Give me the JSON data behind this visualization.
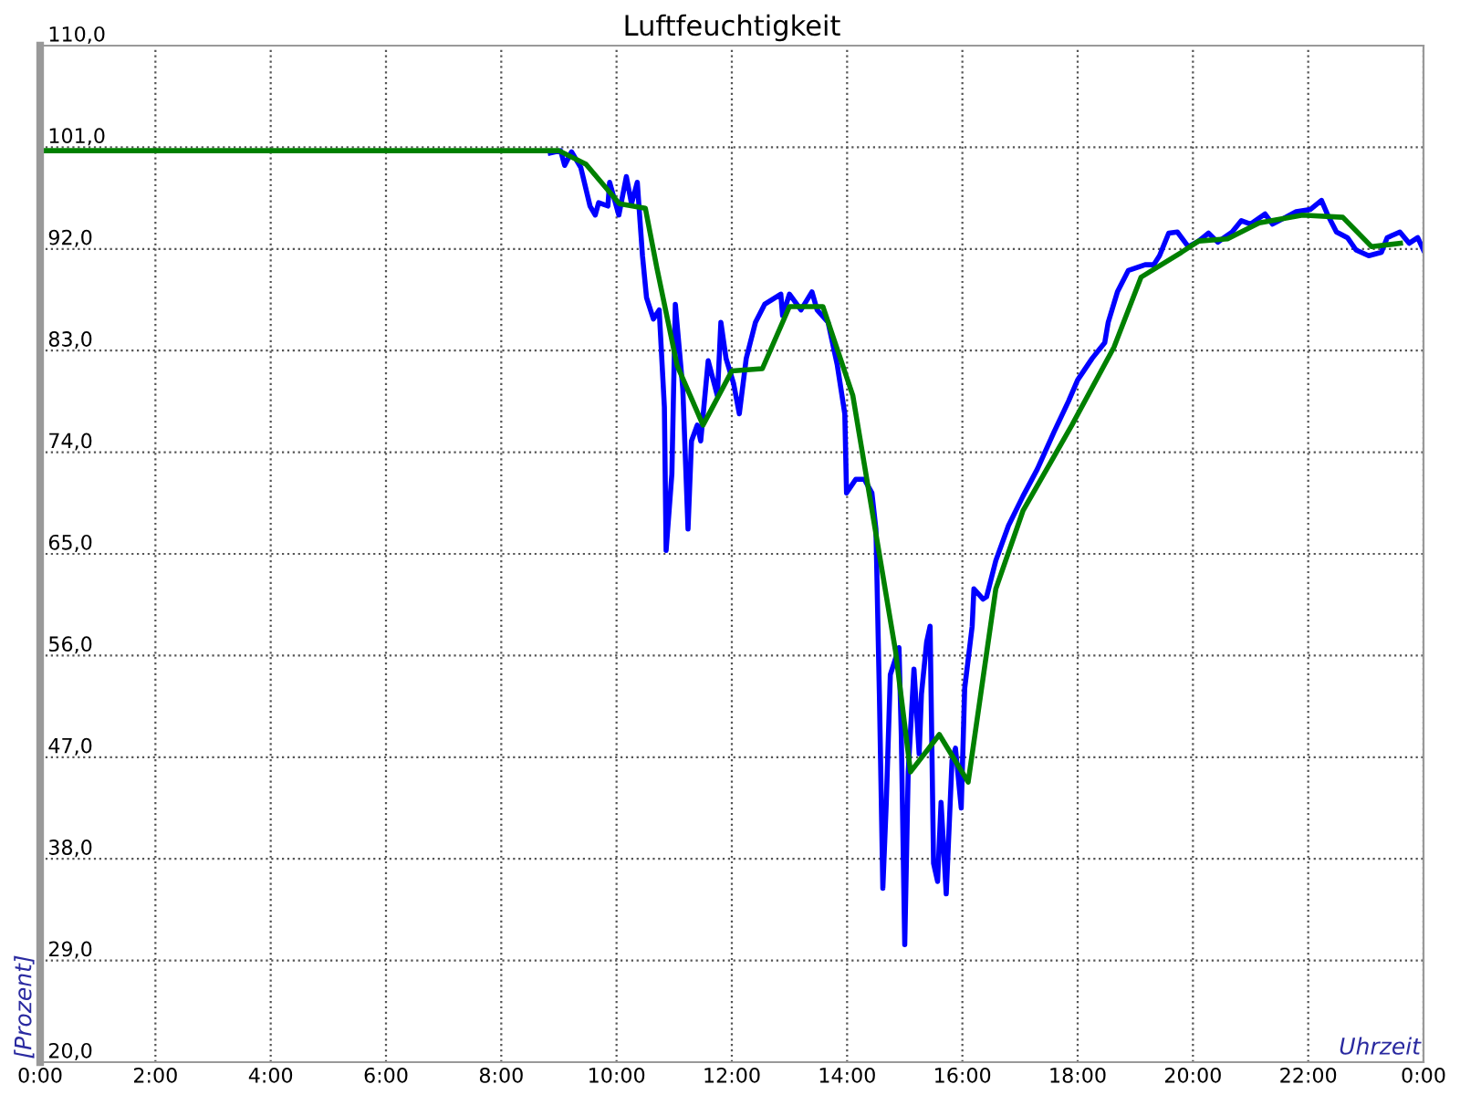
{
  "chart_data": {
    "type": "line",
    "title": "Luftfeuchtigkeit",
    "xlabel": "Uhrzeit",
    "ylabel": "[Prozent]",
    "xlim": [
      0,
      24
    ],
    "ylim": [
      20,
      110
    ],
    "xticks": [
      {
        "value": 0,
        "label": "0:00"
      },
      {
        "value": 2,
        "label": "2:00"
      },
      {
        "value": 4,
        "label": "4:00"
      },
      {
        "value": 6,
        "label": "6:00"
      },
      {
        "value": 8,
        "label": "8:00"
      },
      {
        "value": 10,
        "label": "10:00"
      },
      {
        "value": 12,
        "label": "12:00"
      },
      {
        "value": 14,
        "label": "14:00"
      },
      {
        "value": 16,
        "label": "16:00"
      },
      {
        "value": 18,
        "label": "18:00"
      },
      {
        "value": 20,
        "label": "20:00"
      },
      {
        "value": 22,
        "label": "22:00"
      },
      {
        "value": 24,
        "label": "0:00"
      }
    ],
    "yticks": [
      {
        "value": 20,
        "label": "20,0"
      },
      {
        "value": 29,
        "label": "29,0"
      },
      {
        "value": 38,
        "label": "38,0"
      },
      {
        "value": 47,
        "label": "47,0"
      },
      {
        "value": 56,
        "label": "56,0"
      },
      {
        "value": 65,
        "label": "65,0"
      },
      {
        "value": 74,
        "label": "74,0"
      },
      {
        "value": 83,
        "label": "83,0"
      },
      {
        "value": 92,
        "label": "92,0"
      },
      {
        "value": 101,
        "label": "101,0"
      },
      {
        "value": 110,
        "label": "110,0"
      }
    ],
    "grid": true,
    "line_style": "solid",
    "marker": "none",
    "series": [
      {
        "color": "#0000ff",
        "x": [
          8.85,
          9.03,
          9.1,
          9.22,
          9.38,
          9.54,
          9.63,
          9.69,
          9.85,
          9.88,
          10.04,
          10.17,
          10.26,
          10.36,
          10.45,
          10.52,
          10.64,
          10.74,
          10.83,
          10.86,
          10.96,
          11.02,
          11.15,
          11.24,
          11.3,
          11.4,
          11.46,
          11.59,
          11.75,
          11.81,
          11.9,
          12.03,
          12.13,
          12.25,
          12.41,
          12.57,
          12.85,
          12.88,
          13.0,
          13.2,
          13.39,
          13.48,
          13.67,
          13.83,
          13.96,
          13.99,
          14.15,
          14.3,
          14.43,
          14.5,
          14.56,
          14.62,
          14.68,
          14.75,
          14.9,
          14.94,
          15.0,
          15.06,
          15.16,
          15.25,
          15.29,
          15.38,
          15.44,
          15.5,
          15.57,
          15.63,
          15.72,
          15.82,
          15.88,
          15.98,
          16.04,
          16.17,
          16.2,
          16.36,
          16.42,
          16.58,
          16.8,
          17.05,
          17.3,
          17.59,
          17.84,
          18.0,
          18.25,
          18.47,
          18.53,
          18.69,
          18.88,
          19.17,
          19.32,
          19.42,
          19.58,
          19.73,
          19.92,
          20.1,
          20.27,
          20.43,
          20.68,
          20.84,
          21.0,
          21.25,
          21.38,
          21.57,
          21.79,
          22.04,
          22.23,
          22.33,
          22.49,
          22.68,
          22.83,
          23.05,
          23.27,
          23.37,
          23.59,
          23.75,
          23.9,
          24.0
        ],
        "values": [
          100.5,
          100.7,
          99.4,
          100.6,
          99.2,
          95.8,
          95.0,
          96.1,
          95.8,
          97.9,
          95.0,
          98.4,
          96.0,
          97.9,
          91.4,
          87.7,
          85.8,
          86.6,
          78.0,
          65.3,
          72.1,
          87.1,
          79.6,
          67.2,
          75.0,
          76.4,
          75.0,
          82.1,
          79.0,
          85.5,
          82.3,
          80.1,
          77.4,
          82.3,
          85.5,
          87.1,
          88.0,
          86.1,
          88.0,
          86.6,
          88.2,
          86.6,
          85.5,
          81.7,
          77.4,
          70.4,
          71.6,
          71.6,
          70.4,
          67.2,
          52.6,
          35.4,
          43.0,
          54.3,
          56.7,
          49.0,
          30.4,
          45.7,
          54.8,
          47.3,
          52.6,
          57.2,
          58.6,
          37.6,
          36.0,
          43.0,
          34.9,
          46.7,
          47.8,
          42.5,
          53.1,
          58.6,
          61.9,
          61.0,
          61.2,
          64.4,
          67.5,
          70.1,
          72.5,
          75.8,
          78.5,
          80.4,
          82.3,
          83.7,
          85.5,
          88.2,
          90.1,
          90.6,
          90.6,
          91.4,
          93.4,
          93.5,
          92.2,
          92.7,
          93.4,
          92.6,
          93.5,
          94.5,
          94.2,
          95.1,
          94.2,
          94.7,
          95.3,
          95.5,
          96.3,
          95.1,
          93.5,
          93.0,
          91.9,
          91.4,
          91.7,
          93.0,
          93.5,
          92.5,
          93.0,
          91.9
        ]
      },
      {
        "color": "#008000",
        "x": [
          0,
          9.0,
          9.47,
          10.05,
          10.5,
          10.7,
          11.05,
          11.5,
          12.0,
          12.53,
          13.0,
          13.58,
          14.1,
          14.84,
          15.1,
          15.6,
          16.1,
          16.58,
          17.05,
          17.9,
          18.63,
          19.1,
          19.8,
          20.1,
          20.6,
          21.15,
          21.9,
          22.6,
          23.1,
          23.6
        ],
        "values": [
          100.7,
          100.7,
          99.5,
          96.0,
          95.6,
          90.3,
          81.7,
          76.4,
          81.2,
          81.4,
          86.9,
          86.9,
          79.0,
          56.4,
          45.7,
          49.0,
          44.8,
          61.9,
          68.8,
          76.4,
          83.3,
          89.5,
          91.7,
          92.7,
          92.9,
          94.3,
          95.0,
          94.8,
          92.2,
          92.5
        ]
      }
    ]
  }
}
